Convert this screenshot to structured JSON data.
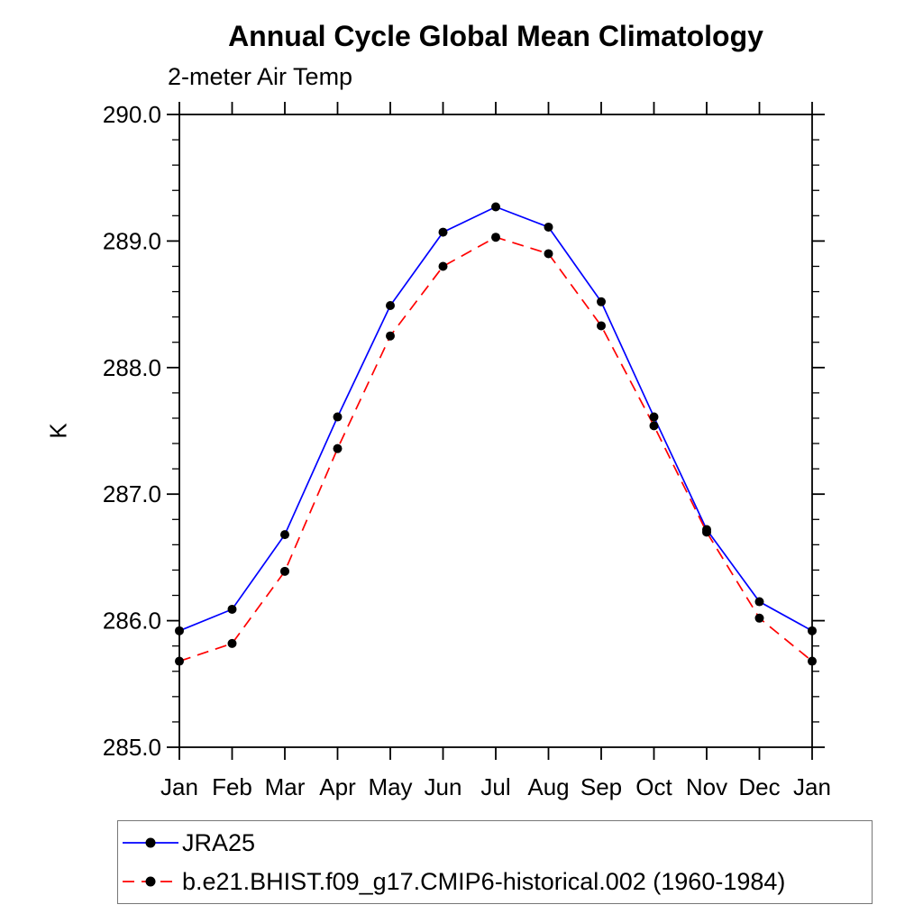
{
  "page": {
    "background": "#ffffff"
  },
  "chart_data": {
    "type": "line",
    "title": "Annual Cycle Global Mean Climatology",
    "subtitle": "2-meter Air Temp",
    "xlabel": "",
    "ylabel": "K",
    "categories": [
      "Jan",
      "Feb",
      "Mar",
      "Apr",
      "May",
      "Jun",
      "Jul",
      "Aug",
      "Sep",
      "Oct",
      "Nov",
      "Dec",
      "Jan"
    ],
    "ylim": [
      285.0,
      290.0
    ],
    "ytick_major_step": 1.0,
    "ytick_minor_step": 0.2,
    "ytick_labels": [
      "285.0",
      "286.0",
      "287.0",
      "288.0",
      "289.0",
      "290.0"
    ],
    "grid": false,
    "frame": "box-with-outward-ticks",
    "legend_position": "bottom-left-box",
    "axis_color": "#000000",
    "marker_color": "#000000",
    "series": [
      {
        "name": "JRA25",
        "color": "#0000ff",
        "style": "solid",
        "marker": "circle",
        "values": [
          285.92,
          286.09,
          286.68,
          287.61,
          288.49,
          289.07,
          289.27,
          289.11,
          288.52,
          287.61,
          286.72,
          286.15,
          285.92
        ]
      },
      {
        "name": "b.e21.BHIST.f09_g17.CMIP6-historical.002 (1960-1984)",
        "color": "#ff0000",
        "style": "dashed",
        "marker": "circle",
        "values": [
          285.68,
          285.82,
          286.39,
          287.36,
          288.25,
          288.8,
          289.03,
          288.9,
          288.33,
          287.54,
          286.7,
          286.02,
          285.68
        ]
      }
    ]
  }
}
